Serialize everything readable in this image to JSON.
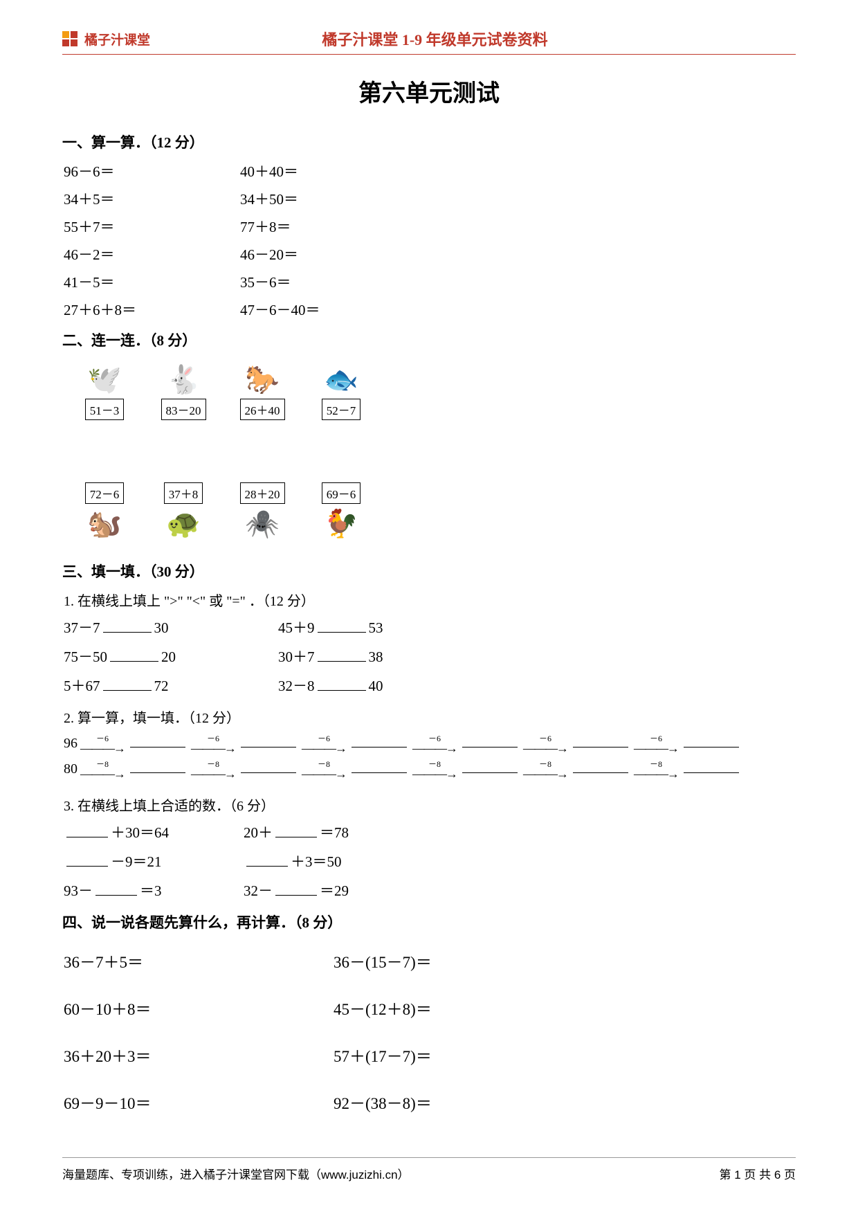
{
  "header": {
    "logo_text": "橘子汁课堂",
    "center": "橘子汁课堂 1-9 年级单元试卷资料"
  },
  "title": "第六单元测试",
  "s1": {
    "head": "一、算一算．（12 分）",
    "rows": [
      [
        "96－6＝",
        "40＋40＝"
      ],
      [
        "34＋5＝",
        "34＋50＝"
      ],
      [
        "55＋7＝",
        "77＋8＝"
      ],
      [
        "46－2＝",
        "46－20＝"
      ],
      [
        "41－5＝",
        "35－6＝"
      ],
      [
        "27＋6＋8＝",
        "47－6－40＝"
      ]
    ]
  },
  "s2": {
    "head": "二、连一连．（8 分）",
    "top": [
      {
        "glyph": "🕊️",
        "eq": "51－3"
      },
      {
        "glyph": "🐇",
        "eq": "83－20"
      },
      {
        "glyph": "🐎",
        "eq": "26＋40"
      },
      {
        "glyph": "🐟",
        "eq": "52－7"
      }
    ],
    "bottom": [
      {
        "glyph": "🐿️",
        "eq": "72－6"
      },
      {
        "glyph": "🐢",
        "eq": "37＋8"
      },
      {
        "glyph": "🕷️",
        "eq": "28＋20"
      },
      {
        "glyph": "🐓",
        "eq": "69－6"
      }
    ]
  },
  "s3": {
    "head": "三、填一填．（30 分）",
    "q1": {
      "prompt": "1. 在横线上填上 \">\" \"<\" 或 \"=\" ．（12 分）",
      "rows": [
        [
          "37－7",
          "30",
          "45＋9",
          "53"
        ],
        [
          "75－50",
          "20",
          "30＋7",
          "38"
        ],
        [
          "5＋67",
          "72",
          "32－8",
          "40"
        ]
      ]
    },
    "q2": {
      "prompt": "2. 算一算，填一填．（12 分）",
      "chain_a_start": "96",
      "chain_a_op": "－6",
      "chain_b_start": "80",
      "chain_b_op": "－8"
    },
    "q3": {
      "prompt": "3. 在横线上填上合适的数．（6 分）",
      "rows": [
        {
          "a_pre": "",
          "a_suf": "＋30＝64",
          "b_pre": "20＋",
          "b_suf": "＝78"
        },
        {
          "a_pre": "",
          "a_suf": "－9＝21",
          "b_pre": "",
          "b_suf": "＋3＝50"
        },
        {
          "a_pre": "93－",
          "a_suf": "＝3",
          "b_pre": "32－",
          "b_suf": "＝29"
        }
      ]
    }
  },
  "s4": {
    "head": "四、说一说各题先算什么，再计算．（8 分）",
    "rows": [
      [
        "36－7＋5＝",
        "36－(15－7)＝"
      ],
      [
        "60－10＋8＝",
        "45－(12＋8)＝"
      ],
      [
        "36＋20＋3＝",
        "57＋(17－7)＝"
      ],
      [
        "69－9－10＝",
        "92－(38－8)＝"
      ]
    ]
  },
  "footer": {
    "left": "海量题库、专项训练，进入橘子汁课堂官网下载（www.juzizhi.cn）",
    "right": "第 1 页 共 6 页"
  }
}
